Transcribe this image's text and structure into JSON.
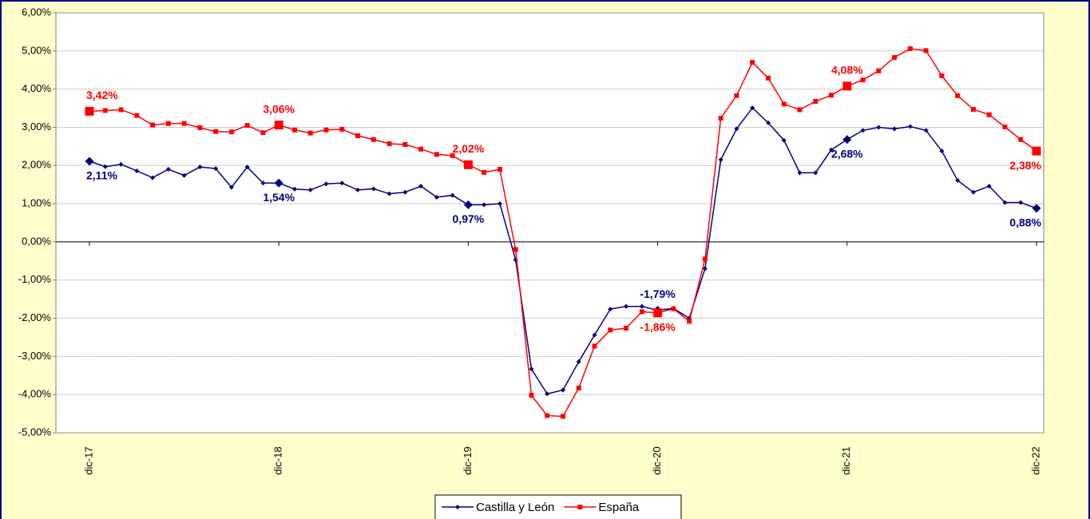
{
  "chart_data": {
    "type": "line",
    "categories": [
      "dic-17",
      null,
      null,
      null,
      null,
      null,
      null,
      null,
      null,
      null,
      null,
      null,
      "dic-18",
      null,
      null,
      null,
      null,
      null,
      null,
      null,
      null,
      null,
      null,
      null,
      "dic-19",
      null,
      null,
      null,
      null,
      null,
      null,
      null,
      null,
      null,
      null,
      null,
      "dic-20",
      null,
      null,
      null,
      null,
      null,
      null,
      null,
      null,
      null,
      null,
      null,
      "dic-21",
      null,
      null,
      null,
      null,
      null,
      null,
      null,
      null,
      null,
      null,
      null,
      "dic-22"
    ],
    "series": [
      {
        "name": "Castilla y León",
        "color": "#000080",
        "values": [
          2.11,
          1.97,
          2.03,
          1.86,
          1.68,
          1.9,
          1.74,
          1.96,
          1.92,
          1.43,
          1.96,
          1.54,
          1.54,
          1.38,
          1.36,
          1.52,
          1.54,
          1.36,
          1.39,
          1.26,
          1.3,
          1.46,
          1.17,
          1.22,
          0.97,
          0.97,
          1.0,
          -0.47,
          -3.33,
          -3.98,
          -3.88,
          -3.14,
          -2.44,
          -1.76,
          -1.69,
          -1.69,
          -1.79,
          -1.74,
          -2.0,
          -0.7,
          2.15,
          2.96,
          3.51,
          3.12,
          2.66,
          1.81,
          1.81,
          2.41,
          2.68,
          2.92,
          3.0,
          2.96,
          3.02,
          2.92,
          2.38,
          1.61,
          1.3,
          1.46,
          1.03,
          1.03,
          0.88
        ],
        "value_labels": [
          "2,11%",
          null,
          null,
          null,
          null,
          null,
          null,
          null,
          null,
          null,
          null,
          null,
          "1,54%",
          null,
          null,
          null,
          null,
          null,
          null,
          null,
          null,
          null,
          null,
          null,
          "0,97%",
          null,
          null,
          null,
          null,
          null,
          null,
          null,
          null,
          null,
          null,
          null,
          "-1,79%",
          null,
          null,
          null,
          null,
          null,
          null,
          null,
          null,
          null,
          null,
          null,
          "2,68%",
          null,
          null,
          null,
          null,
          null,
          null,
          null,
          null,
          null,
          null,
          null,
          "0,88%"
        ]
      },
      {
        "name": "España",
        "color": "#ff0000",
        "values": [
          3.42,
          3.44,
          3.46,
          3.31,
          3.06,
          3.1,
          3.1,
          2.99,
          2.89,
          2.88,
          3.05,
          2.86,
          3.06,
          2.93,
          2.85,
          2.93,
          2.95,
          2.78,
          2.68,
          2.57,
          2.55,
          2.43,
          2.29,
          2.26,
          2.02,
          1.82,
          1.9,
          -0.2,
          -4.02,
          -4.55,
          -4.57,
          -3.83,
          -2.73,
          -2.31,
          -2.26,
          -1.83,
          -1.86,
          -1.75,
          -2.08,
          -0.45,
          3.24,
          3.83,
          4.7,
          4.29,
          3.61,
          3.46,
          3.68,
          3.84,
          4.08,
          4.24,
          4.48,
          4.83,
          5.06,
          5.01,
          4.35,
          3.83,
          3.47,
          3.33,
          3.01,
          2.68,
          2.38
        ],
        "value_labels": [
          "3,42%",
          null,
          null,
          null,
          null,
          null,
          null,
          null,
          null,
          null,
          null,
          null,
          "3,06%",
          null,
          null,
          null,
          null,
          null,
          null,
          null,
          null,
          null,
          null,
          null,
          "2,02%",
          null,
          null,
          null,
          null,
          null,
          null,
          null,
          null,
          null,
          null,
          null,
          "-1,86%",
          null,
          null,
          null,
          null,
          null,
          null,
          null,
          null,
          null,
          null,
          null,
          "4,08%",
          null,
          null,
          null,
          null,
          null,
          null,
          null,
          null,
          null,
          null,
          null,
          "2,38%"
        ]
      }
    ],
    "ylim": [
      -5,
      6
    ],
    "yticks": [
      {
        "value": -5,
        "label": "-5,00%"
      },
      {
        "value": -4,
        "label": "-4,00%"
      },
      {
        "value": -3,
        "label": "-3,00%"
      },
      {
        "value": -2,
        "label": "-2,00%"
      },
      {
        "value": -1,
        "label": "-1,00%"
      },
      {
        "value": 0,
        "label": "0,00%"
      },
      {
        "value": 1,
        "label": "1,00%"
      },
      {
        "value": 2,
        "label": "2,00%"
      },
      {
        "value": 3,
        "label": "3,00%"
      },
      {
        "value": 4,
        "label": "4,00%"
      },
      {
        "value": 5,
        "label": "5,00%"
      },
      {
        "value": 6,
        "label": "6,00%"
      }
    ],
    "grid": true,
    "legend": "bottom"
  }
}
